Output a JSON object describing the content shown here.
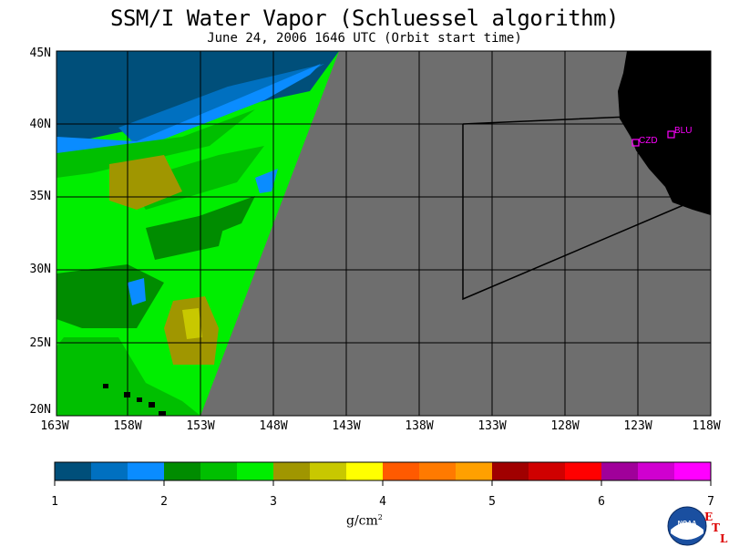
{
  "title": "SSM/I Water Vapor (Schluessel algorithm)",
  "subtitle": "June 24, 2006  1646 UTC  (Orbit start time)",
  "map": {
    "lat_labels": [
      "45N",
      "40N",
      "35N",
      "30N",
      "25N",
      "20N"
    ],
    "lon_labels": [
      "163W",
      "158W",
      "153W",
      "148W",
      "143W",
      "138W",
      "133W",
      "128W",
      "123W",
      "118W"
    ],
    "stations": [
      {
        "code": "CZD"
      },
      {
        "code": "BLU"
      }
    ],
    "colors": {
      "no_data": "#6e6e6e",
      "land": "#000000",
      "station": "#ff00ff"
    }
  },
  "colorbar": {
    "ticks": [
      "1",
      "2",
      "3",
      "4",
      "5",
      "6",
      "7"
    ],
    "colors": [
      "#004f7a",
      "#0070c0",
      "#0a8cff",
      "#008c00",
      "#00bf00",
      "#00ee00",
      "#a09600",
      "#c8c800",
      "#ffff00",
      "#ff5a00",
      "#ff7a00",
      "#ffa000",
      "#a00000",
      "#d00000",
      "#ff0000",
      "#a0009a",
      "#d000d0",
      "#ff00ff"
    ],
    "units_label": "g/cm",
    "units_exp": "2"
  },
  "logo": {
    "text": "NOAA",
    "etl": [
      "E",
      "T",
      "L"
    ]
  }
}
